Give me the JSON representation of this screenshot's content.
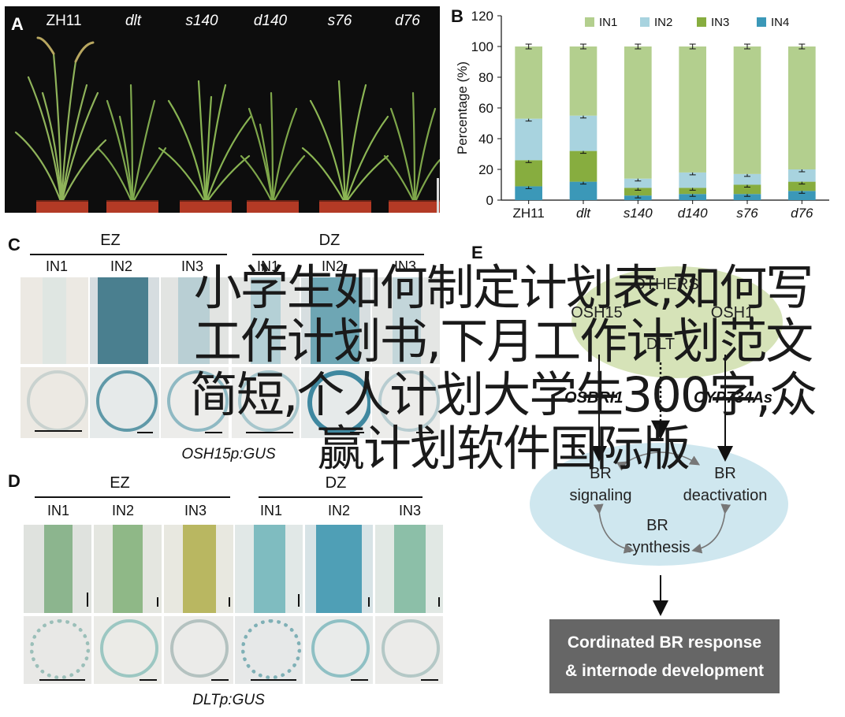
{
  "panel_labels": {
    "a": "A",
    "b": "B",
    "c": "C",
    "d": "D",
    "e": "E"
  },
  "panel_a": {
    "plants": [
      "ZH11",
      "dlt",
      "s140",
      "d140",
      "s76",
      "d76"
    ]
  },
  "chart_data": {
    "type": "bar",
    "stacked": true,
    "categories": [
      "ZH11",
      "dlt",
      "s140",
      "d140",
      "s76",
      "d76"
    ],
    "series": [
      {
        "name": "IN1",
        "values": [
          47,
          45,
          86,
          82,
          83,
          80
        ],
        "color": "#b3cf8e"
      },
      {
        "name": "IN2",
        "values": [
          27,
          23,
          6,
          10,
          7,
          8
        ],
        "color": "#a8d3df"
      },
      {
        "name": "IN3",
        "values": [
          17,
          20,
          5,
          4,
          6,
          6
        ],
        "color": "#87ad3f"
      },
      {
        "name": "IN4",
        "values": [
          9,
          12,
          3,
          4,
          4,
          6
        ],
        "color": "#3b98b8"
      }
    ],
    "ylabel": "Percentage (%)",
    "ylim": [
      0,
      120
    ],
    "yticks": [
      "0",
      "20",
      "40",
      "60",
      "80",
      "100",
      "120"
    ],
    "legend": "top"
  },
  "panel_c": {
    "groups": [
      "EZ",
      "DZ"
    ],
    "internodes": [
      "IN1",
      "IN2",
      "IN3",
      "IN1",
      "IN2",
      "IN3"
    ],
    "caption": "OSH15p:GUS"
  },
  "panel_d": {
    "groups": [
      "EZ",
      "DZ"
    ],
    "internodes": [
      "IN1",
      "IN2",
      "IN3",
      "IN1",
      "IN2",
      "IN3"
    ],
    "caption": "DLTp:GUS"
  },
  "panel_e": {
    "top_nodes": [
      "OTHERS",
      "OSH15",
      "OSH1",
      "DLT"
    ],
    "regulators": [
      "OSBRI1",
      "CYP734As"
    ],
    "br_signaling": [
      "BR",
      "signaling"
    ],
    "br_deactivation": [
      "BR",
      "deactivation"
    ],
    "br_synthesis": [
      "BR",
      "synthesis"
    ],
    "box": [
      "Cordinated BR response",
      "& internode development"
    ]
  },
  "overlay_title": "小学生如何制定计划表,如何写工作计划书,下月工作计划范文简短,个人计划大学生300字,众赢计划软件国际版"
}
